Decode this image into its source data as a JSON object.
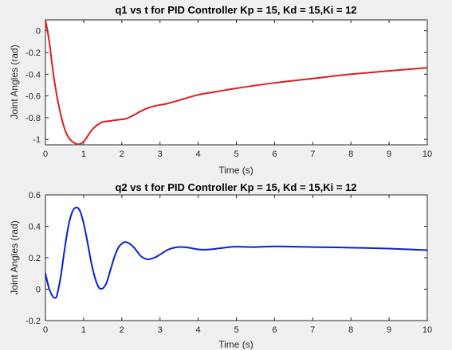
{
  "chart_data": [
    {
      "type": "line",
      "title": "q1 vs t for PID Controller Kp = 15, Kd = 15,Ki = 12",
      "xlabel": "Time (s)",
      "ylabel": "Joint Angles (rad)",
      "xlim": [
        0,
        10
      ],
      "ylim": [
        -1.05,
        0.1
      ],
      "xticks": [
        0,
        1,
        2,
        3,
        4,
        5,
        6,
        7,
        8,
        9,
        10
      ],
      "yticks": [
        -1,
        -0.8,
        -0.6,
        -0.4,
        -0.2,
        0
      ],
      "ytick_labels": [
        "-1",
        "-0.8",
        "-0.6",
        "-0.4",
        "-0.2",
        "0"
      ],
      "grid": false,
      "series": [
        {
          "color": "#e31a1c",
          "x": [
            0,
            0.1,
            0.2,
            0.3,
            0.4,
            0.5,
            0.6,
            0.7,
            0.8,
            0.87,
            0.95,
            1.05,
            1.2,
            1.35,
            1.5,
            1.7,
            1.9,
            2.1,
            2.3,
            2.5,
            2.7,
            2.9,
            3.2,
            3.5,
            4.0,
            4.5,
            5.0,
            6.0,
            7.0,
            8.0,
            9.0,
            10.0
          ],
          "y": [
            0.1,
            -0.1,
            -0.38,
            -0.6,
            -0.77,
            -0.9,
            -0.98,
            -1.02,
            -1.04,
            -1.045,
            -1.035,
            -1.0,
            -0.92,
            -0.87,
            -0.84,
            -0.83,
            -0.82,
            -0.81,
            -0.78,
            -0.74,
            -0.71,
            -0.69,
            -0.67,
            -0.64,
            -0.59,
            -0.56,
            -0.53,
            -0.48,
            -0.44,
            -0.4,
            -0.37,
            -0.34
          ]
        }
      ]
    },
    {
      "type": "line",
      "title": "q2 vs t for PID Controller Kp = 15, Kd = 15,Ki = 12",
      "xlabel": "Time (s)",
      "ylabel": "Joint Angles (rad)",
      "xlim": [
        0,
        10
      ],
      "ylim": [
        -0.2,
        0.6
      ],
      "xticks": [
        0,
        1,
        2,
        3,
        4,
        5,
        6,
        7,
        8,
        9,
        10
      ],
      "yticks": [
        -0.2,
        0,
        0.2,
        0.4,
        0.6
      ],
      "ytick_labels": [
        "-0.2",
        "0",
        "0.2",
        "0.4",
        "0.6"
      ],
      "grid": false,
      "series": [
        {
          "color": "#0a1ed6",
          "x": [
            0,
            0.1,
            0.2,
            0.25,
            0.3,
            0.4,
            0.5,
            0.6,
            0.7,
            0.8,
            0.9,
            1.0,
            1.1,
            1.2,
            1.3,
            1.4,
            1.5,
            1.6,
            1.7,
            1.8,
            1.9,
            2.0,
            2.1,
            2.2,
            2.3,
            2.4,
            2.5,
            2.6,
            2.7,
            2.85,
            3.0,
            3.2,
            3.4,
            3.6,
            3.8,
            4.0,
            4.25,
            4.5,
            4.75,
            5.0,
            5.5,
            6.0,
            6.5,
            7.0,
            8.0,
            9.0,
            10.0
          ],
          "y": [
            0.1,
            0.0,
            -0.05,
            -0.055,
            -0.04,
            0.08,
            0.25,
            0.4,
            0.49,
            0.52,
            0.5,
            0.42,
            0.3,
            0.17,
            0.07,
            0.01,
            0.005,
            0.04,
            0.12,
            0.2,
            0.26,
            0.29,
            0.3,
            0.29,
            0.27,
            0.24,
            0.21,
            0.195,
            0.19,
            0.2,
            0.22,
            0.25,
            0.265,
            0.268,
            0.262,
            0.253,
            0.252,
            0.258,
            0.266,
            0.27,
            0.268,
            0.272,
            0.27,
            0.268,
            0.264,
            0.258,
            0.248
          ]
        }
      ]
    }
  ]
}
